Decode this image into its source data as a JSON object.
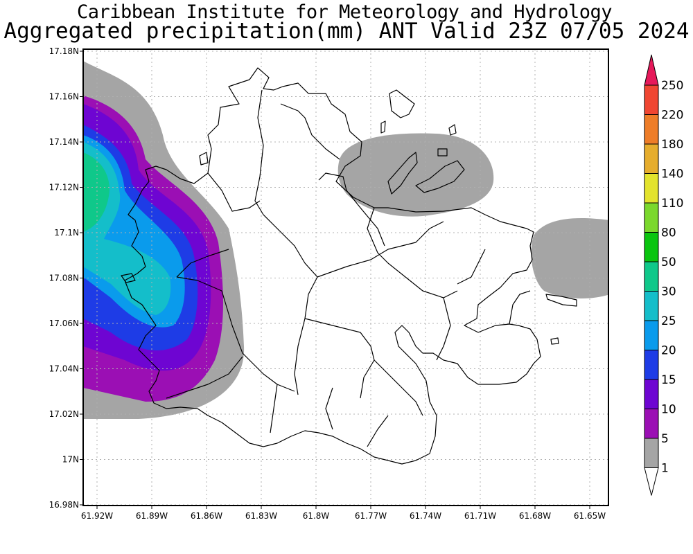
{
  "header": {
    "line1": "Caribbean Institute for Meteorology and Hydrology",
    "line2": "Aggregated precipitation(mm) ANT Valid 23Z 07/05 2024"
  },
  "map": {
    "x_ticks": [
      "61.92W",
      "61.89W",
      "61.86W",
      "61.83W",
      "61.8W",
      "61.77W",
      "61.74W",
      "61.71W",
      "61.68W",
      "61.65W"
    ],
    "y_ticks": [
      "17.18N",
      "17.16N",
      "17.14N",
      "17.12N",
      "17.1N",
      "17.08N",
      "17.06N",
      "17.04N",
      "17.02N",
      "17N",
      "16.98N"
    ],
    "lon_range": [
      -61.93,
      -61.645
    ],
    "lat_range": [
      16.98,
      17.18
    ],
    "grid": true
  },
  "colorbar": {
    "levels": [
      "1",
      "5",
      "10",
      "15",
      "20",
      "25",
      "30",
      "50",
      "80",
      "110",
      "140",
      "180",
      "220",
      "250"
    ],
    "colors": [
      "#a5a5a5",
      "#9b0fb4",
      "#6e05d2",
      "#1e3ce6",
      "#0a9bec",
      "#14beca",
      "#0fc88a",
      "#0ac50f",
      "#7bd82d",
      "#e3e32d",
      "#e6ad2d",
      "#ee7d28",
      "#f04632",
      "#e6195a"
    ],
    "under_color": "#ffffff"
  }
}
